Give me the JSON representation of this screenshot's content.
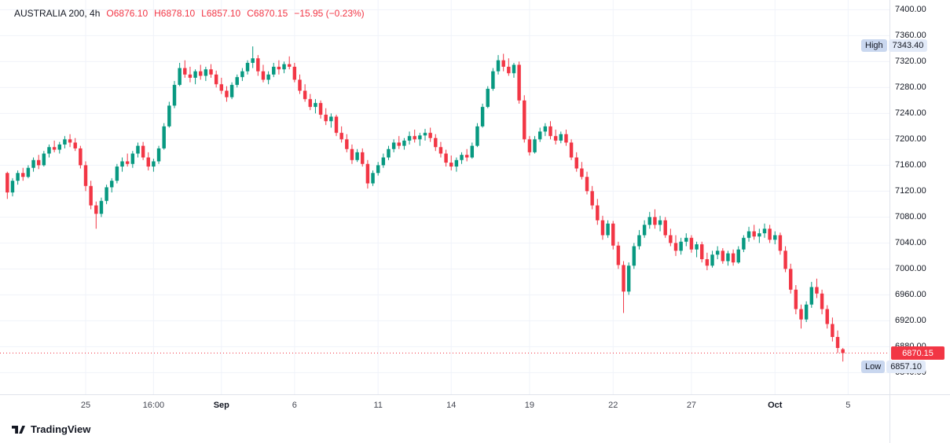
{
  "header": {
    "symbol": "AUSTRALIA 200, 4h",
    "o": "O6876.10",
    "h": "H6878.10",
    "l": "L6857.10",
    "c": "C6870.15",
    "change": "−15.95 (−0.23%)"
  },
  "badges": {
    "high_label": "High",
    "high_value": "7343.40",
    "last_value": "6870.15",
    "low_label": "Low",
    "low_value": "6857.10"
  },
  "footer": {
    "logo_text": "TradingView"
  },
  "colors": {
    "up": "#089981",
    "down": "#f23645",
    "grid": "#f0f3fa",
    "axis_text": "#131722",
    "last_line": "#f23645"
  },
  "chart_data": {
    "type": "candlestick",
    "symbol": "AUSTRALIA 200",
    "interval": "4h",
    "ohlc_legend": {
      "open": 6876.1,
      "high": 6878.1,
      "low": 6857.1,
      "close": 6870.15,
      "change": -15.95,
      "change_pct": -0.23
    },
    "session_high": 7343.4,
    "session_low": 6857.1,
    "last": 6870.15,
    "y_axis": {
      "min": 6840,
      "max": 7400,
      "tick_step": 40,
      "tick_labels": [
        "7400.00",
        "7360.00",
        "7320.00",
        "7280.00",
        "7240.00",
        "7200.00",
        "7160.00",
        "7120.00",
        "7080.00",
        "7040.00",
        "7000.00",
        "6960.00",
        "6920.00",
        "6880.00",
        "6840.00"
      ]
    },
    "x_label_positions": [
      {
        "label": "25",
        "i": 15
      },
      {
        "label": "16:00",
        "i": 28
      },
      {
        "label": "Sep",
        "i": 41,
        "major": true
      },
      {
        "label": "6",
        "i": 55
      },
      {
        "label": "11",
        "i": 71
      },
      {
        "label": "14",
        "i": 85
      },
      {
        "label": "19",
        "i": 100
      },
      {
        "label": "22",
        "i": 116
      },
      {
        "label": "27",
        "i": 131
      },
      {
        "label": "Oct",
        "i": 147,
        "major": true
      },
      {
        "label": "5",
        "i": 161
      }
    ],
    "candles": [
      [
        7148,
        7150,
        7108,
        7118
      ],
      [
        7118,
        7140,
        7112,
        7136
      ],
      [
        7136,
        7152,
        7130,
        7148
      ],
      [
        7148,
        7156,
        7136,
        7142
      ],
      [
        7142,
        7160,
        7140,
        7156
      ],
      [
        7156,
        7172,
        7150,
        7168
      ],
      [
        7168,
        7176,
        7154,
        7160
      ],
      [
        7160,
        7182,
        7158,
        7178
      ],
      [
        7178,
        7192,
        7172,
        7188
      ],
      [
        7188,
        7198,
        7180,
        7184
      ],
      [
        7184,
        7196,
        7178,
        7192
      ],
      [
        7192,
        7205,
        7186,
        7200
      ],
      [
        7200,
        7208,
        7188,
        7195
      ],
      [
        7195,
        7202,
        7182,
        7186
      ],
      [
        7186,
        7190,
        7155,
        7160
      ],
      [
        7160,
        7166,
        7120,
        7128
      ],
      [
        7128,
        7136,
        7092,
        7098
      ],
      [
        7098,
        7104,
        7062,
        7085
      ],
      [
        7085,
        7110,
        7080,
        7105
      ],
      [
        7105,
        7130,
        7100,
        7126
      ],
      [
        7126,
        7140,
        7118,
        7136
      ],
      [
        7136,
        7162,
        7132,
        7158
      ],
      [
        7158,
        7172,
        7150,
        7166
      ],
      [
        7166,
        7178,
        7158,
        7162
      ],
      [
        7162,
        7182,
        7156,
        7178
      ],
      [
        7178,
        7195,
        7172,
        7190
      ],
      [
        7190,
        7196,
        7168,
        7172
      ],
      [
        7172,
        7180,
        7152,
        7158
      ],
      [
        7158,
        7170,
        7150,
        7166
      ],
      [
        7166,
        7190,
        7162,
        7186
      ],
      [
        7186,
        7225,
        7184,
        7220
      ],
      [
        7220,
        7258,
        7218,
        7252
      ],
      [
        7252,
        7290,
        7248,
        7284
      ],
      [
        7284,
        7318,
        7282,
        7310
      ],
      [
        7310,
        7322,
        7295,
        7300
      ],
      [
        7300,
        7312,
        7288,
        7295
      ],
      [
        7295,
        7308,
        7285,
        7305
      ],
      [
        7305,
        7315,
        7292,
        7298
      ],
      [
        7298,
        7312,
        7290,
        7308
      ],
      [
        7308,
        7316,
        7295,
        7300
      ],
      [
        7300,
        7306,
        7280,
        7285
      ],
      [
        7285,
        7295,
        7270,
        7275
      ],
      [
        7275,
        7282,
        7258,
        7265
      ],
      [
        7265,
        7288,
        7262,
        7284
      ],
      [
        7284,
        7300,
        7280,
        7296
      ],
      [
        7296,
        7310,
        7290,
        7305
      ],
      [
        7305,
        7322,
        7300,
        7318
      ],
      [
        7318,
        7343.4,
        7310,
        7325
      ],
      [
        7325,
        7330,
        7298,
        7305
      ],
      [
        7305,
        7315,
        7288,
        7292
      ],
      [
        7292,
        7305,
        7285,
        7300
      ],
      [
        7300,
        7318,
        7296,
        7312
      ],
      [
        7312,
        7322,
        7300,
        7308
      ],
      [
        7308,
        7320,
        7302,
        7316
      ],
      [
        7316,
        7328,
        7308,
        7312
      ],
      [
        7312,
        7318,
        7288,
        7292
      ],
      [
        7292,
        7300,
        7270,
        7275
      ],
      [
        7275,
        7285,
        7258,
        7262
      ],
      [
        7262,
        7270,
        7245,
        7250
      ],
      [
        7250,
        7262,
        7240,
        7256
      ],
      [
        7256,
        7260,
        7232,
        7238
      ],
      [
        7238,
        7248,
        7222,
        7228
      ],
      [
        7228,
        7240,
        7218,
        7235
      ],
      [
        7235,
        7238,
        7205,
        7210
      ],
      [
        7210,
        7220,
        7195,
        7200
      ],
      [
        7200,
        7208,
        7180,
        7185
      ],
      [
        7185,
        7192,
        7162,
        7168
      ],
      [
        7168,
        7185,
        7165,
        7180
      ],
      [
        7180,
        7186,
        7158,
        7162
      ],
      [
        7162,
        7168,
        7124,
        7132
      ],
      [
        7132,
        7152,
        7128,
        7148
      ],
      [
        7148,
        7165,
        7144,
        7160
      ],
      [
        7160,
        7178,
        7156,
        7172
      ],
      [
        7172,
        7190,
        7168,
        7185
      ],
      [
        7185,
        7200,
        7180,
        7195
      ],
      [
        7195,
        7205,
        7185,
        7190
      ],
      [
        7190,
        7202,
        7184,
        7198
      ],
      [
        7198,
        7212,
        7192,
        7205
      ],
      [
        7205,
        7215,
        7195,
        7200
      ],
      [
        7200,
        7210,
        7190,
        7206
      ],
      [
        7206,
        7216,
        7198,
        7210
      ],
      [
        7210,
        7218,
        7196,
        7202
      ],
      [
        7202,
        7208,
        7182,
        7188
      ],
      [
        7188,
        7196,
        7172,
        7178
      ],
      [
        7178,
        7184,
        7158,
        7164
      ],
      [
        7164,
        7175,
        7152,
        7158
      ],
      [
        7158,
        7172,
        7150,
        7168
      ],
      [
        7168,
        7180,
        7162,
        7176
      ],
      [
        7176,
        7185,
        7166,
        7172
      ],
      [
        7172,
        7195,
        7170,
        7190
      ],
      [
        7190,
        7225,
        7188,
        7220
      ],
      [
        7220,
        7255,
        7218,
        7250
      ],
      [
        7250,
        7282,
        7248,
        7278
      ],
      [
        7278,
        7310,
        7275,
        7305
      ],
      [
        7305,
        7330,
        7300,
        7322
      ],
      [
        7322,
        7332,
        7305,
        7312
      ],
      [
        7312,
        7325,
        7298,
        7302
      ],
      [
        7302,
        7318,
        7295,
        7315
      ],
      [
        7315,
        7320,
        7255,
        7260
      ],
      [
        7260,
        7268,
        7195,
        7200
      ],
      [
        7200,
        7205,
        7175,
        7180
      ],
      [
        7180,
        7205,
        7178,
        7200
      ],
      [
        7200,
        7218,
        7196,
        7212
      ],
      [
        7212,
        7225,
        7205,
        7220
      ],
      [
        7220,
        7228,
        7200,
        7205
      ],
      [
        7205,
        7215,
        7192,
        7198
      ],
      [
        7198,
        7212,
        7194,
        7208
      ],
      [
        7208,
        7215,
        7190,
        7195
      ],
      [
        7195,
        7200,
        7168,
        7172
      ],
      [
        7172,
        7180,
        7150,
        7155
      ],
      [
        7155,
        7165,
        7138,
        7142
      ],
      [
        7142,
        7150,
        7115,
        7120
      ],
      [
        7120,
        7128,
        7092,
        7098
      ],
      [
        7098,
        7108,
        7068,
        7075
      ],
      [
        7075,
        7082,
        7045,
        7052
      ],
      [
        7052,
        7075,
        7048,
        7070
      ],
      [
        7070,
        7074,
        7030,
        7036
      ],
      [
        7036,
        7042,
        7000,
        7006
      ],
      [
        7006,
        7012,
        6932,
        6965
      ],
      [
        6965,
        7010,
        6960,
        7005
      ],
      [
        7005,
        7040,
        7000,
        7035
      ],
      [
        7035,
        7060,
        7030,
        7052
      ],
      [
        7052,
        7075,
        7048,
        7068
      ],
      [
        7068,
        7088,
        7062,
        7080
      ],
      [
        7080,
        7092,
        7062,
        7068
      ],
      [
        7068,
        7082,
        7058,
        7075
      ],
      [
        7075,
        7080,
        7048,
        7052
      ],
      [
        7052,
        7062,
        7035,
        7040
      ],
      [
        7040,
        7052,
        7020,
        7028
      ],
      [
        7028,
        7048,
        7022,
        7042
      ],
      [
        7042,
        7055,
        7035,
        7048
      ],
      [
        7048,
        7052,
        7025,
        7030
      ],
      [
        7030,
        7042,
        7018,
        7038
      ],
      [
        7038,
        7042,
        7010,
        7015
      ],
      [
        7015,
        7025,
        6998,
        7005
      ],
      [
        7005,
        7028,
        7002,
        7022
      ],
      [
        7022,
        7035,
        7015,
        7028
      ],
      [
        7028,
        7032,
        7008,
        7012
      ],
      [
        7012,
        7028,
        7005,
        7024
      ],
      [
        7024,
        7030,
        7005,
        7010
      ],
      [
        7010,
        7035,
        7008,
        7030
      ],
      [
        7030,
        7052,
        7026,
        7048
      ],
      [
        7048,
        7065,
        7042,
        7058
      ],
      [
        7058,
        7068,
        7045,
        7050
      ],
      [
        7050,
        7062,
        7040,
        7055
      ],
      [
        7055,
        7070,
        7048,
        7062
      ],
      [
        7062,
        7068,
        7040,
        7045
      ],
      [
        7045,
        7058,
        7038,
        7052
      ],
      [
        7052,
        7056,
        7022,
        7028
      ],
      [
        7028,
        7035,
        6995,
        7000
      ],
      [
        7000,
        7008,
        6962,
        6968
      ],
      [
        6968,
        6975,
        6930,
        6938
      ],
      [
        6938,
        6945,
        6908,
        6922
      ],
      [
        6922,
        6950,
        6918,
        6945
      ],
      [
        6945,
        6980,
        6940,
        6972
      ],
      [
        6972,
        6985,
        6955,
        6962
      ],
      [
        6962,
        6968,
        6930,
        6938
      ],
      [
        6938,
        6944,
        6908,
        6915
      ],
      [
        6915,
        6925,
        6888,
        6895
      ],
      [
        6895,
        6905,
        6870,
        6878
      ],
      [
        6876.1,
        6878.1,
        6857.1,
        6870.15
      ]
    ]
  }
}
